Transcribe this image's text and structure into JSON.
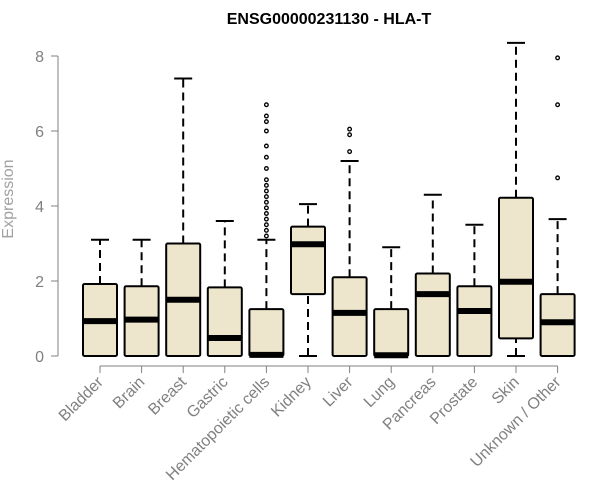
{
  "chart_data": {
    "type": "box",
    "title": "ENSG00000231130 - HLA-T",
    "ylabel": "Expression",
    "xlabel": "",
    "ylim": [
      0,
      8.5
    ],
    "yticks": [
      0,
      2,
      4,
      6,
      8
    ],
    "categories": [
      "Bladder",
      "Brain",
      "Breast",
      "Gastric",
      "Hematopoietic cells",
      "Kidney",
      "Liver",
      "Lung",
      "Pancreas",
      "Prostate",
      "Skin",
      "Unknown / Other"
    ],
    "boxes": [
      {
        "whisker_low": 0,
        "q1": 0,
        "median": 0.93,
        "q3": 1.92,
        "whisker_high": 3.1,
        "outliers": []
      },
      {
        "whisker_low": 0,
        "q1": 0,
        "median": 0.97,
        "q3": 1.86,
        "whisker_high": 3.1,
        "outliers": []
      },
      {
        "whisker_low": 0,
        "q1": 0,
        "median": 1.5,
        "q3": 3.0,
        "whisker_high": 7.4,
        "outliers": []
      },
      {
        "whisker_low": 0,
        "q1": 0,
        "median": 0.48,
        "q3": 1.83,
        "whisker_high": 3.6,
        "outliers": []
      },
      {
        "whisker_low": 0,
        "q1": 0,
        "median": 0.03,
        "q3": 1.25,
        "whisker_high": 3.1,
        "outliers": [
          3.2,
          3.35,
          3.5,
          3.65,
          3.8,
          3.95,
          4.1,
          4.25,
          4.4,
          4.55,
          4.7,
          5.0,
          5.3,
          5.6,
          6.0,
          6.25,
          6.4,
          6.7
        ]
      },
      {
        "whisker_low": 0,
        "q1": 1.65,
        "median": 2.98,
        "q3": 3.45,
        "whisker_high": 4.05,
        "outliers": []
      },
      {
        "whisker_low": 0,
        "q1": 0,
        "median": 1.15,
        "q3": 2.1,
        "whisker_high": 5.2,
        "outliers": [
          5.45,
          5.9,
          6.05
        ]
      },
      {
        "whisker_low": 0,
        "q1": 0,
        "median": 0.02,
        "q3": 1.25,
        "whisker_high": 2.9,
        "outliers": []
      },
      {
        "whisker_low": 0,
        "q1": 0,
        "median": 1.65,
        "q3": 2.2,
        "whisker_high": 4.3,
        "outliers": []
      },
      {
        "whisker_low": 0,
        "q1": 0,
        "median": 1.2,
        "q3": 1.86,
        "whisker_high": 3.5,
        "outliers": []
      },
      {
        "whisker_low": 0,
        "q1": 0.47,
        "median": 1.98,
        "q3": 4.22,
        "whisker_high": 8.35,
        "outliers": []
      },
      {
        "whisker_low": 0,
        "q1": 0,
        "median": 0.9,
        "q3": 1.65,
        "whisker_high": 3.65,
        "outliers": [
          4.75,
          6.7,
          7.95
        ]
      }
    ],
    "colors": {
      "box_fill": "#ede6cc",
      "box_stroke": "#000000",
      "axis": "#808080",
      "tick_label": "#808080",
      "ylabel": "#a0a0a0"
    },
    "grid": false
  }
}
